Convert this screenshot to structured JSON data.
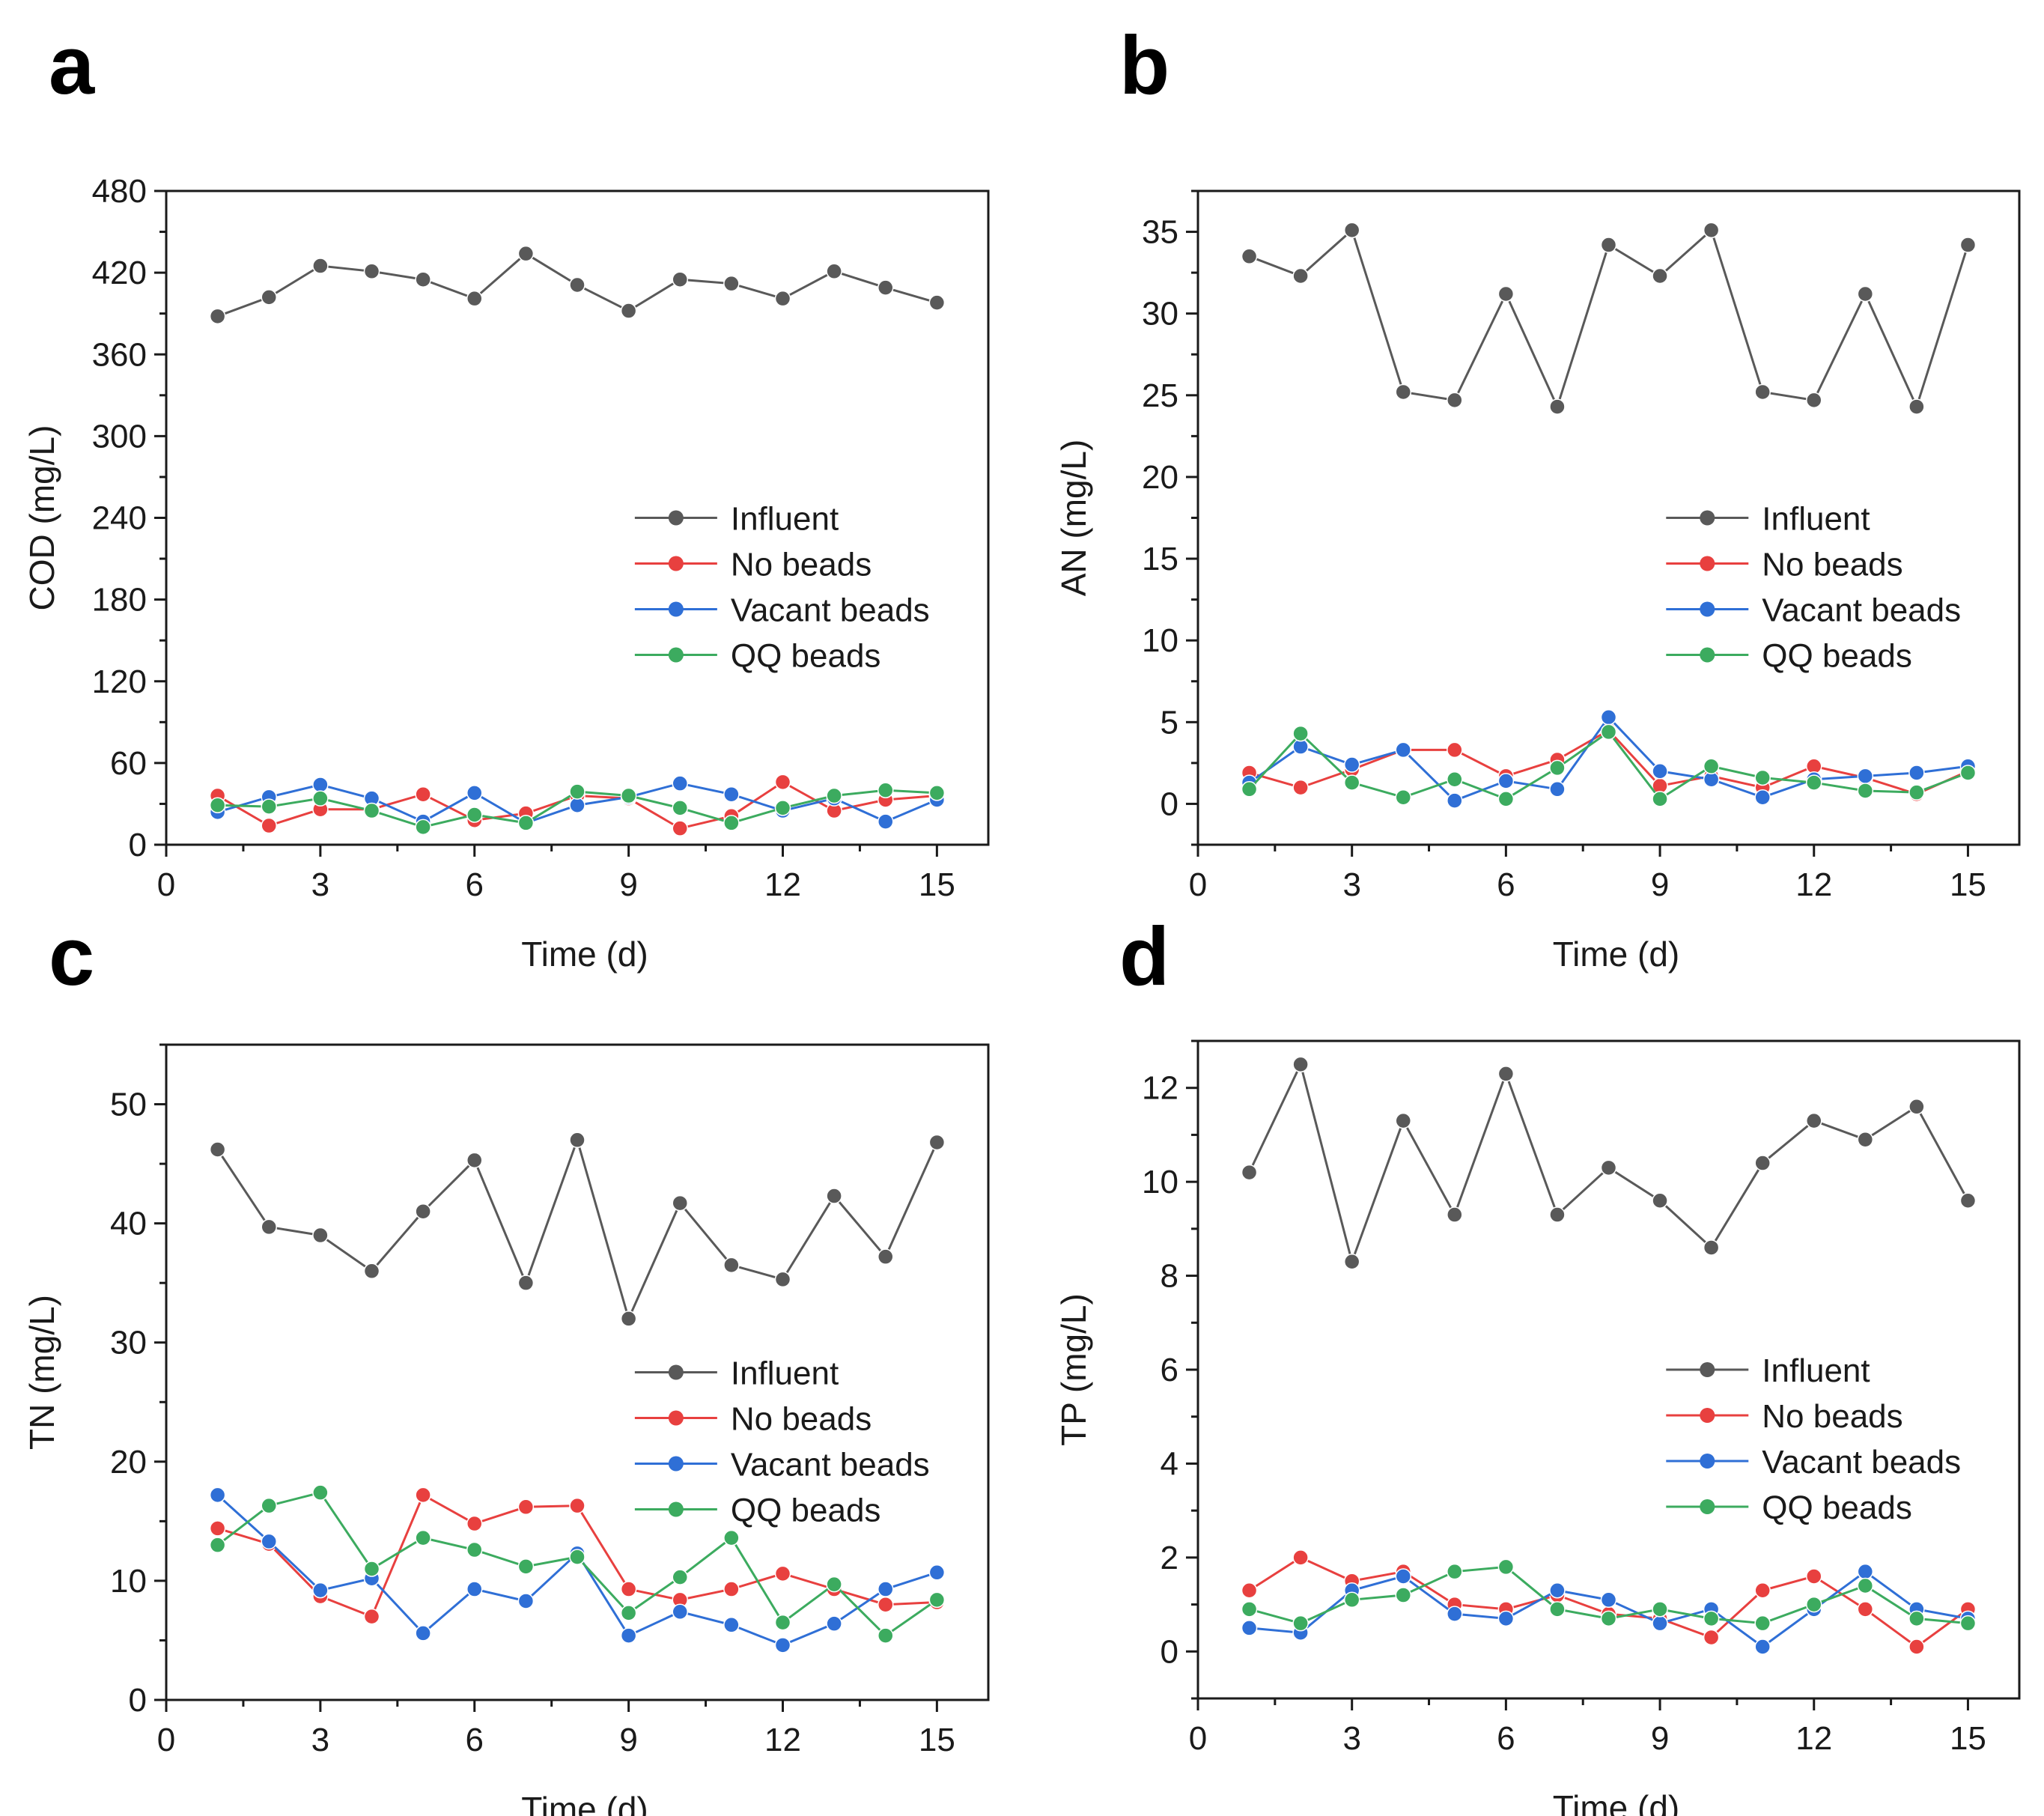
{
  "panels": [
    {
      "label": "a",
      "chart_data": {
        "type": "line",
        "xlabel": "Time (d)",
        "ylabel": "COD (mg/L)",
        "xlim": [
          0,
          16
        ],
        "ylim": [
          0,
          480
        ],
        "xticks": [
          0,
          3,
          6,
          9,
          12,
          15
        ],
        "yticks": [
          0,
          60,
          120,
          180,
          240,
          300,
          360,
          420,
          480
        ],
        "x": [
          1,
          2,
          3,
          4,
          5,
          6,
          7,
          8,
          9,
          10,
          11,
          12,
          13,
          14,
          15
        ],
        "legend_position": "center-right",
        "series": [
          {
            "name": "Influent",
            "color": "#595959",
            "values": [
              388,
              402,
              425,
              421,
              415,
              401,
              434,
              411,
              392,
              415,
              412,
              401,
              421,
              409,
              398
            ]
          },
          {
            "name": "No beads",
            "color": "#e8403f",
            "values": [
              36,
              14,
              26,
              26,
              37,
              18,
              23,
              36,
              34,
              12,
              21,
              46,
              25,
              33,
              36
            ]
          },
          {
            "name": "Vacant beads",
            "color": "#2f6fd6",
            "values": [
              24,
              35,
              44,
              34,
              17,
              38,
              16,
              29,
              35,
              45,
              37,
              25,
              34,
              17,
              33
            ]
          },
          {
            "name": "QQ beads",
            "color": "#3cab5f",
            "values": [
              29,
              28,
              34,
              25,
              13,
              22,
              16,
              39,
              36,
              27,
              16,
              27,
              36,
              40,
              38
            ]
          }
        ]
      }
    },
    {
      "label": "b",
      "chart_data": {
        "type": "line",
        "xlabel": "Time (d)",
        "ylabel": "AN (mg/L)",
        "xlim": [
          0,
          16
        ],
        "ylim": [
          -2.5,
          37.5
        ],
        "xticks": [
          0,
          3,
          6,
          9,
          12,
          15
        ],
        "yticks": [
          0,
          5,
          10,
          15,
          20,
          25,
          30,
          35
        ],
        "x": [
          1,
          2,
          3,
          4,
          5,
          6,
          7,
          8,
          9,
          10,
          11,
          12,
          13,
          14,
          15
        ],
        "legend_position": "center-right",
        "series": [
          {
            "name": "Influent",
            "color": "#595959",
            "values": [
              33.5,
              32.3,
              35.1,
              25.2,
              24.7,
              31.2,
              24.3,
              34.2,
              32.3,
              35.1,
              25.2,
              24.7,
              31.2,
              24.3,
              34.2
            ]
          },
          {
            "name": "No beads",
            "color": "#e8403f",
            "values": [
              1.9,
              1.0,
              2.1,
              3.3,
              3.3,
              1.7,
              2.7,
              4.5,
              1.1,
              1.7,
              1.0,
              2.3,
              1.6,
              0.6,
              2.0
            ]
          },
          {
            "name": "Vacant beads",
            "color": "#2f6fd6",
            "values": [
              1.3,
              3.5,
              2.4,
              3.3,
              0.2,
              1.4,
              0.9,
              5.3,
              2.0,
              1.5,
              0.4,
              1.5,
              1.7,
              1.9,
              2.3
            ]
          },
          {
            "name": "QQ beads",
            "color": "#3cab5f",
            "values": [
              0.9,
              4.3,
              1.3,
              0.4,
              1.5,
              0.3,
              2.2,
              4.4,
              0.3,
              2.3,
              1.6,
              1.3,
              0.8,
              0.7,
              1.9
            ]
          }
        ]
      }
    },
    {
      "label": "c",
      "chart_data": {
        "type": "line",
        "xlabel": "Time (d)",
        "ylabel": "TN (mg/L)",
        "xlim": [
          0,
          16
        ],
        "ylim": [
          0,
          55
        ],
        "xticks": [
          0,
          3,
          6,
          9,
          12,
          15
        ],
        "yticks": [
          0,
          10,
          20,
          30,
          40,
          50
        ],
        "x": [
          1,
          2,
          3,
          4,
          5,
          6,
          7,
          8,
          9,
          10,
          11,
          12,
          13,
          14,
          15
        ],
        "legend_position": "center-right",
        "series": [
          {
            "name": "Influent",
            "color": "#595959",
            "values": [
              46.2,
              39.7,
              39.0,
              36.0,
              41.0,
              45.3,
              35.0,
              47.0,
              32.0,
              41.7,
              36.5,
              35.3,
              42.3,
              37.2,
              46.8
            ]
          },
          {
            "name": "No beads",
            "color": "#e8403f",
            "values": [
              14.4,
              13.1,
              8.7,
              7.0,
              17.2,
              14.8,
              16.2,
              16.3,
              9.3,
              8.4,
              9.3,
              10.6,
              9.3,
              8.0,
              8.2
            ]
          },
          {
            "name": "Vacant beads",
            "color": "#2f6fd6",
            "values": [
              17.2,
              13.3,
              9.2,
              10.2,
              5.6,
              9.3,
              8.3,
              12.3,
              5.4,
              7.4,
              6.3,
              4.6,
              6.4,
              9.3,
              10.7
            ]
          },
          {
            "name": "QQ beads",
            "color": "#3cab5f",
            "values": [
              13.0,
              16.3,
              17.4,
              11.0,
              13.6,
              12.6,
              11.2,
              12.0,
              7.3,
              10.3,
              13.6,
              6.5,
              9.7,
              5.4,
              8.4
            ]
          }
        ]
      }
    },
    {
      "label": "d",
      "chart_data": {
        "type": "line",
        "xlabel": "Time (d)",
        "ylabel": "TP (mg/L)",
        "xlim": [
          0,
          16
        ],
        "ylim": [
          -1,
          13
        ],
        "xticks": [
          0,
          3,
          6,
          9,
          12,
          15
        ],
        "yticks": [
          0,
          2,
          4,
          6,
          8,
          10,
          12
        ],
        "x": [
          1,
          2,
          3,
          4,
          5,
          6,
          7,
          8,
          9,
          10,
          11,
          12,
          13,
          14,
          15
        ],
        "legend_position": "center-right",
        "series": [
          {
            "name": "Influent",
            "color": "#595959",
            "values": [
              10.2,
              12.5,
              8.3,
              11.3,
              9.3,
              12.3,
              9.3,
              10.3,
              9.6,
              8.6,
              10.4,
              11.3,
              10.9,
              11.6,
              9.6
            ]
          },
          {
            "name": "No beads",
            "color": "#e8403f",
            "values": [
              1.3,
              2.0,
              1.5,
              1.7,
              1.0,
              0.9,
              1.2,
              0.8,
              0.7,
              0.3,
              1.3,
              1.6,
              0.9,
              0.1,
              0.9
            ]
          },
          {
            "name": "Vacant beads",
            "color": "#2f6fd6",
            "values": [
              0.5,
              0.4,
              1.3,
              1.6,
              0.8,
              0.7,
              1.3,
              1.1,
              0.6,
              0.9,
              0.1,
              0.9,
              1.7,
              0.9,
              0.7
            ]
          },
          {
            "name": "QQ beads",
            "color": "#3cab5f",
            "values": [
              0.9,
              0.6,
              1.1,
              1.2,
              1.7,
              1.8,
              0.9,
              0.7,
              0.9,
              0.7,
              0.6,
              1.0,
              1.4,
              0.7,
              0.6
            ]
          }
        ]
      }
    }
  ]
}
